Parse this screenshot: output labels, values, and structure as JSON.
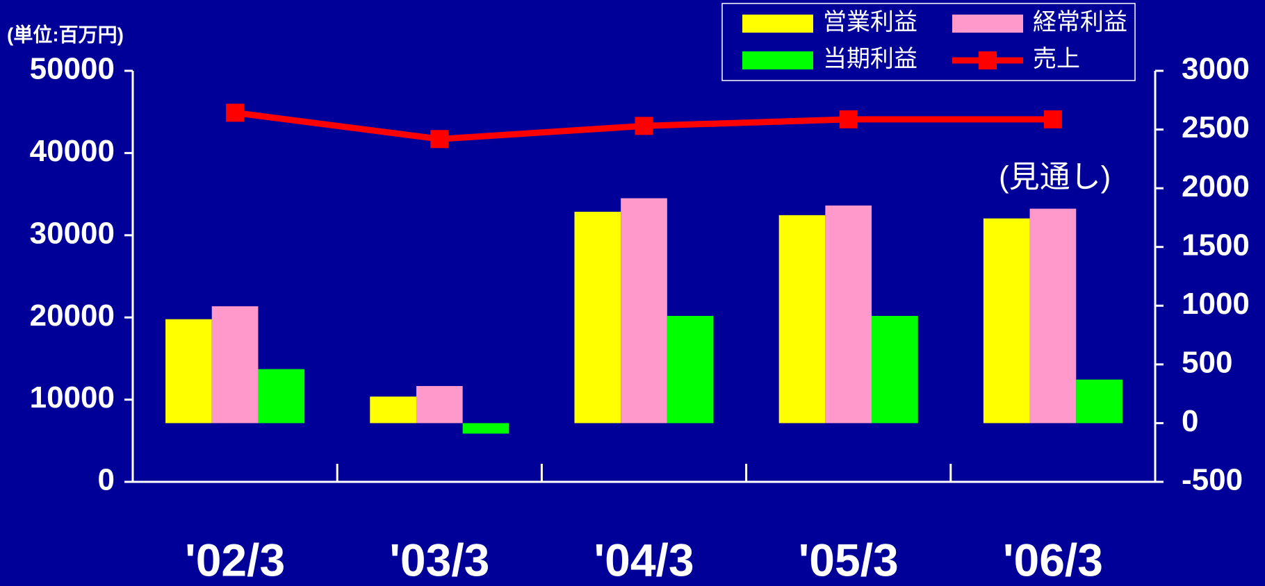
{
  "chart_data": {
    "type": "bar",
    "unit_note": "(単位:百万円)",
    "annotation": "(見通し)",
    "categories": [
      "'02/3",
      "'03/3",
      "'04/3",
      "'05/3",
      "'06/3"
    ],
    "series": [
      {
        "name": "営業利益",
        "color": "#ffff00",
        "axis": "y2",
        "values": [
          885,
          226,
          1800,
          1771,
          1743
        ]
      },
      {
        "name": "経常利益",
        "color": "#ff99cc",
        "axis": "y2",
        "values": [
          995,
          316,
          1915,
          1853,
          1826
        ]
      },
      {
        "name": "当期利益",
        "color": "#00ff00",
        "axis": "y2",
        "values": [
          460,
          -89,
          913,
          913,
          371
        ]
      },
      {
        "name": "売上",
        "color": "#ff0000",
        "type": "line",
        "values": [
          44900,
          41700,
          43300,
          44100,
          44100
        ]
      }
    ],
    "ylim": [
      0,
      50000
    ],
    "yticks": [
      0,
      10000,
      20000,
      30000,
      40000,
      50000
    ],
    "y2lim": [
      -500,
      3000
    ],
    "y2ticks": [
      -500,
      0,
      500,
      1000,
      1500,
      2000,
      2500,
      3000
    ],
    "legend": "top-right"
  }
}
